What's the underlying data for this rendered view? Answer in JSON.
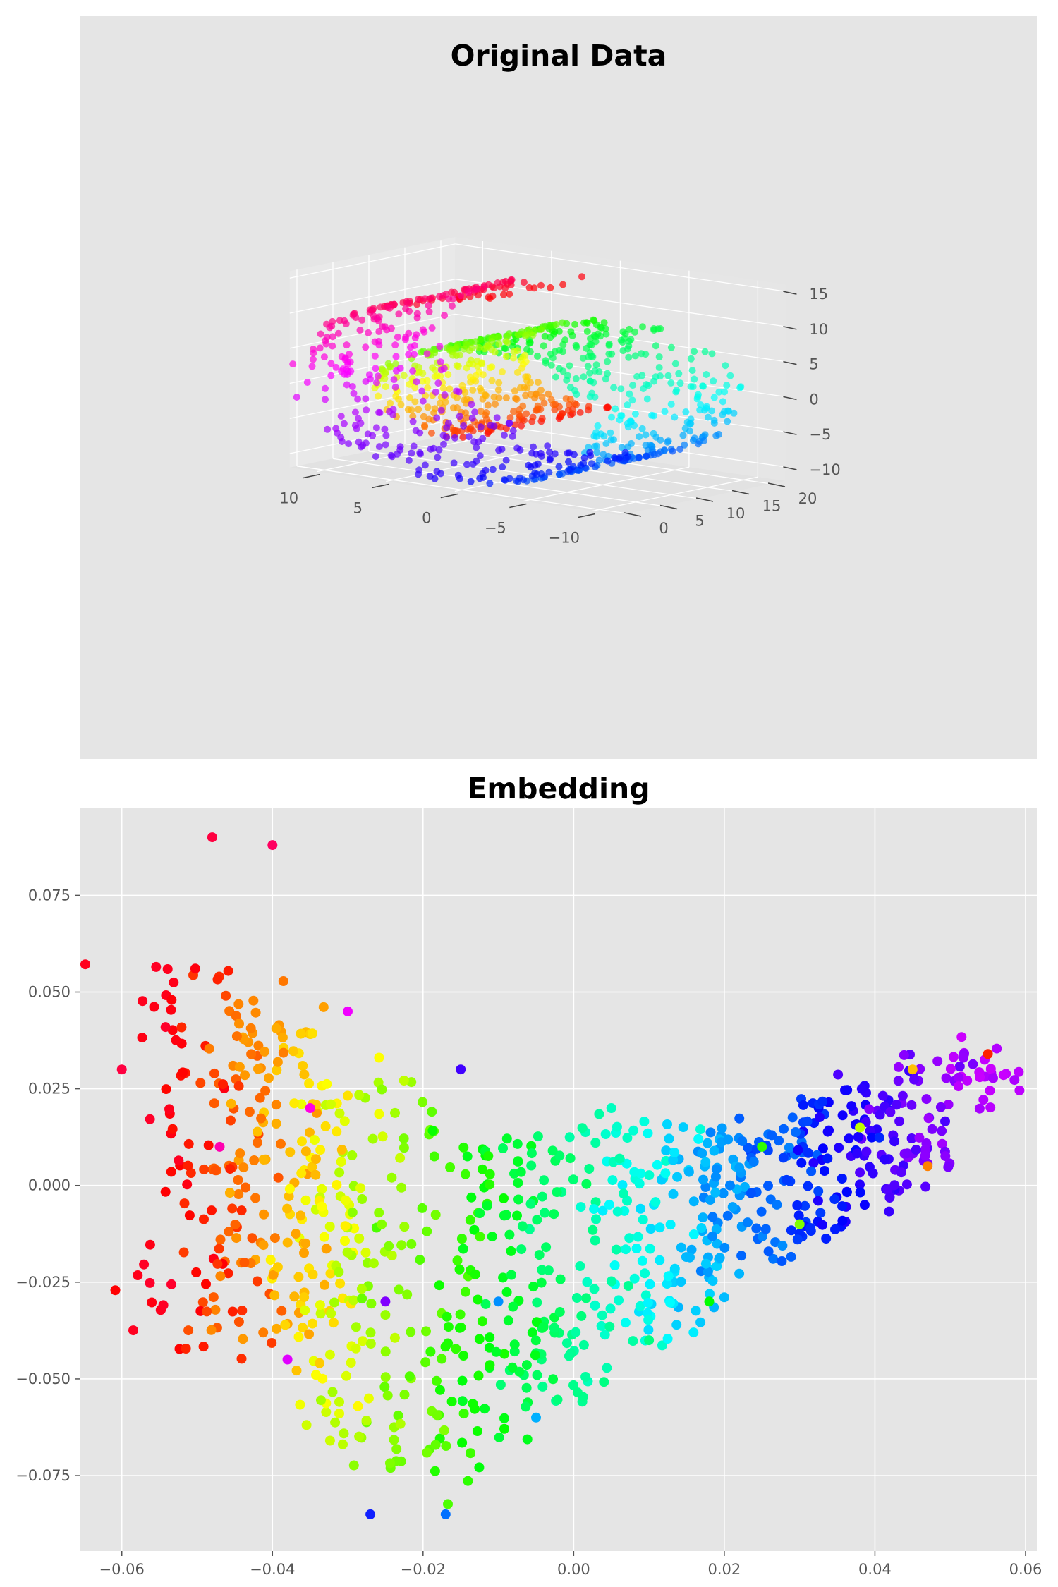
{
  "chart_data": [
    {
      "type": "scatter",
      "projection": "3d",
      "title": "Original Data",
      "xlabel": "",
      "ylabel": "",
      "zlabel": "",
      "xlim": [
        -12,
        12
      ],
      "ylim": [
        -1,
        22
      ],
      "zlim": [
        -12,
        16
      ],
      "xticks": [
        10,
        5,
        0,
        -5,
        -10
      ],
      "xtick_labels": [
        "10",
        "5",
        "0",
        "−5",
        "−10"
      ],
      "yticks": [
        0,
        5,
        10,
        15,
        20
      ],
      "ytick_labels": [
        "0",
        "5",
        "10",
        "15",
        "20"
      ],
      "zticks": [
        15,
        10,
        5,
        0,
        -5,
        -10
      ],
      "ztick_labels": [
        "15",
        "10",
        "5",
        "0",
        "−5",
        "−10"
      ],
      "grid": true,
      "colormap": "hsv",
      "marker_alpha": 0.7,
      "num_points": 1000,
      "data_description": "Swiss roll: x = t*cos(t), z = t*sin(t), t from 1.5*pi to 4.5*pi, y uniform in [0, 21]; color encodes t"
    },
    {
      "type": "scatter",
      "title": "Embedding",
      "xlabel": "",
      "ylabel": "",
      "xlim": [
        -0.0655,
        0.0615
      ],
      "ylim": [
        -0.0945,
        0.0975
      ],
      "xticks": [
        -0.06,
        -0.04,
        -0.02,
        0.0,
        0.02,
        0.04,
        0.06
      ],
      "xtick_labels": [
        "−0.06",
        "−0.04",
        "−0.02",
        "0.00",
        "0.02",
        "0.04",
        "0.06"
      ],
      "yticks": [
        -0.075,
        -0.05,
        -0.025,
        0.0,
        0.025,
        0.05,
        0.075
      ],
      "ytick_labels": [
        "−0.075",
        "−0.050",
        "−0.025",
        "0.000",
        "0.025",
        "0.050",
        "0.075"
      ],
      "grid": true,
      "colormap": "hsv",
      "num_points": 1000,
      "data_description": "2D embedding of the swiss roll; color encodes the same t as the original data",
      "key_points": [
        {
          "x": -0.06,
          "y": 0.03,
          "color": "#ff0040"
        },
        {
          "x": -0.048,
          "y": 0.09,
          "color": "#ff0040"
        },
        {
          "x": -0.047,
          "y": 0.01,
          "color": "#ff00b0"
        },
        {
          "x": -0.04,
          "y": 0.088,
          "color": "#ff0060"
        },
        {
          "x": -0.035,
          "y": 0.02,
          "color": "#ff00e0"
        },
        {
          "x": -0.038,
          "y": -0.045,
          "color": "#e000ff"
        },
        {
          "x": -0.03,
          "y": 0.045,
          "color": "#f000ff"
        },
        {
          "x": -0.025,
          "y": -0.03,
          "color": "#8000ff"
        },
        {
          "x": -0.015,
          "y": 0.03,
          "color": "#4000ff"
        },
        {
          "x": -0.027,
          "y": -0.085,
          "color": "#1020ff"
        },
        {
          "x": -0.017,
          "y": -0.085,
          "color": "#0070ff"
        },
        {
          "x": -0.01,
          "y": -0.03,
          "color": "#0090ff"
        },
        {
          "x": -0.005,
          "y": -0.06,
          "color": "#00b0ff"
        },
        {
          "x": 0.005,
          "y": 0.02,
          "color": "#00ffc0"
        },
        {
          "x": 0.01,
          "y": -0.04,
          "color": "#00ff80"
        },
        {
          "x": 0.018,
          "y": -0.03,
          "color": "#00ff00"
        },
        {
          "x": 0.025,
          "y": 0.01,
          "color": "#30ff00"
        },
        {
          "x": 0.03,
          "y": -0.01,
          "color": "#80ff00"
        },
        {
          "x": 0.038,
          "y": 0.015,
          "color": "#c0ff00"
        },
        {
          "x": 0.045,
          "y": 0.03,
          "color": "#ffc000"
        },
        {
          "x": 0.047,
          "y": 0.005,
          "color": "#ff8000"
        },
        {
          "x": 0.055,
          "y": 0.034,
          "color": "#ff2000"
        }
      ]
    }
  ]
}
